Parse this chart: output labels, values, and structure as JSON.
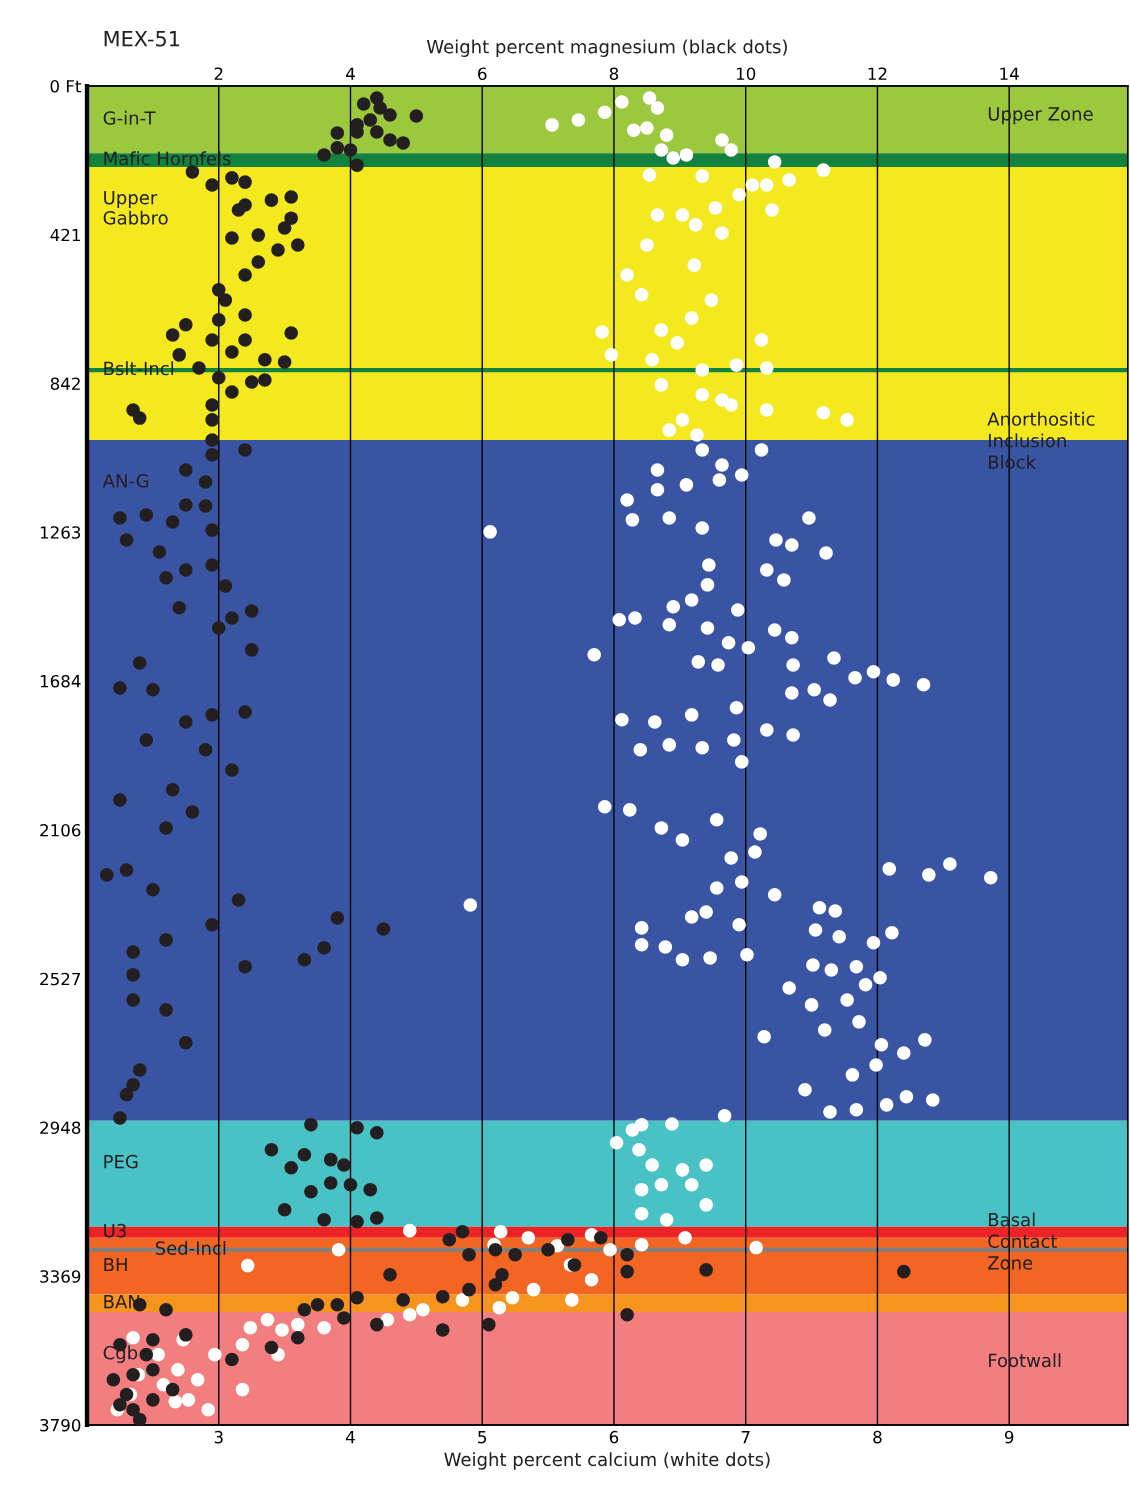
{
  "chart_data": {
    "type": "scatter",
    "title": "MEX-51",
    "xlabel": "Weight percent calcium (white dots)",
    "x2label": "Weight percent magnesium (black dots)",
    "xlim": [
      2.0,
      9.9
    ],
    "xticks": [
      3,
      4,
      5,
      6,
      7,
      8,
      9
    ],
    "x2lim": [
      0,
      15.8
    ],
    "x2ticks": [
      2,
      4,
      6,
      8,
      10,
      12,
      14
    ],
    "ylim": [
      3790,
      0
    ],
    "yticks": [
      {
        "value": 0,
        "label": "0 Ft"
      },
      421,
      842,
      1263,
      1684,
      2106,
      2527,
      2948,
      3369,
      3790
    ],
    "grid": "x",
    "marker": "circle",
    "bands": [
      {
        "axis": "y",
        "from": 0,
        "to": 190,
        "label": "G-in-T",
        "color": "#9bc83c"
      },
      {
        "axis": "y",
        "from": 190,
        "to": 229,
        "label": "Mafic Hornfels",
        "color": "#13823f"
      },
      {
        "axis": "y",
        "from": 229,
        "to": 1002,
        "label": "Upper\nGabbro",
        "color": "#f3e91e"
      },
      {
        "axis": "y",
        "from": 1002,
        "to": 2929,
        "label": "AN-G",
        "color": "#3a54a4"
      },
      {
        "axis": "y",
        "from": 2929,
        "to": 3229,
        "label": "PEG",
        "color": "#48c2c5"
      },
      {
        "axis": "y",
        "from": 3229,
        "to": 3260,
        "label": "U3",
        "color": "#ed2224"
      },
      {
        "axis": "y",
        "from": 3260,
        "to": 3421,
        "label": "BH",
        "color": "#f26522"
      },
      {
        "axis": "y",
        "from": 3421,
        "to": 3470,
        "label": "BAN",
        "color": "#f7941d"
      },
      {
        "axis": "y",
        "from": 3470,
        "to": 3790,
        "label": "Cgb",
        "color": "#f37e7f"
      }
    ],
    "ref_lines": [
      {
        "axis": "y",
        "value": 804,
        "label": "Bslt-Incl",
        "color": "#13823f"
      },
      {
        "axis": "y",
        "value": 3294,
        "label": "Sed-Incl",
        "color": "#808080"
      }
    ],
    "annotations": [
      "Upper Zone",
      "Anorthositic\nInclusion\nBlock",
      "Basal\nContact\nZone",
      "Footwall"
    ],
    "series": [
      {
        "color": "#ffffff",
        "x": [
          5.53,
          5.73,
          5.93,
          6.06,
          6.27,
          6.33,
          6.15,
          6.25,
          6.4,
          6.36,
          6.55,
          6.45,
          6.82,
          6.89,
          7.22,
          7.59,
          6.27,
          6.67,
          7.05,
          7.16,
          7.33,
          6.95,
          7.2,
          6.52,
          6.77,
          6.62,
          6.82,
          6.33,
          6.25,
          6.61,
          6.1,
          6.74,
          6.21,
          6.59,
          5.91,
          6.36,
          7.12,
          6.48,
          6.29,
          5.98,
          6.67,
          6.93,
          7.16,
          6.36,
          6.67,
          6.82,
          7.16,
          6.52,
          7.59,
          7.77,
          6.42,
          6.63,
          6.89,
          6.67,
          6.82,
          7.12,
          6.97,
          6.33,
          6.55,
          6.8,
          6.1,
          6.33,
          6.14,
          6.42,
          6.67,
          5.06,
          7.48,
          7.23,
          7.35,
          7.61,
          7.16,
          7.29,
          6.72,
          6.71,
          6.45,
          6.59,
          6.94,
          6.04,
          6.16,
          6.42,
          6.71,
          7.22,
          7.35,
          7.02,
          6.87,
          5.85,
          6.64,
          6.79,
          7.67,
          7.36,
          7.52,
          7.83,
          7.97,
          8.12,
          8.35,
          7.64,
          7.35,
          6.06,
          6.31,
          6.59,
          6.93,
          7.16,
          7.36,
          6.2,
          6.42,
          6.67,
          6.91,
          6.97,
          5.93,
          6.12,
          6.36,
          6.52,
          6.78,
          7.11,
          6.89,
          7.07,
          6.78,
          6.97,
          8.09,
          8.55,
          8.39,
          8.86,
          4.91,
          6.59,
          6.7,
          6.95,
          6.21,
          6.21,
          6.39,
          6.52,
          6.73,
          7.01,
          7.56,
          7.68,
          7.22,
          7.53,
          7.71,
          7.97,
          8.11,
          7.51,
          7.65,
          7.84,
          7.91,
          7.33,
          7.5,
          7.77,
          8.02,
          7.6,
          7.86,
          8.03,
          8.2,
          8.36,
          7.99,
          7.81,
          7.45,
          7.64,
          7.84,
          8.07,
          8.22,
          8.42,
          7.14,
          6.14,
          6.21,
          6.44,
          6.84,
          6.02,
          6.19,
          6.29,
          6.52,
          6.7,
          6.21,
          6.36,
          6.59,
          6.7,
          6.21,
          6.4,
          4.45,
          5.14,
          5.35,
          5.83,
          5.97,
          6.21,
          6.54,
          7.08,
          3.91,
          3.22,
          5.09,
          5.57,
          5.67,
          5.83,
          5.39,
          5.23,
          4.85,
          5.13,
          5.68,
          4.55,
          4.45,
          4.28,
          3.8,
          3.6,
          3.45,
          3.37,
          3.24,
          3.18,
          2.97,
          2.73,
          2.69,
          2.58,
          2.39,
          2.33,
          2.92,
          2.77,
          3.18,
          2.67,
          3.48,
          2.35,
          2.54,
          2.23,
          2.84
        ],
        "values": [
          110,
          96,
          74,
          45,
          34,
          62,
          125,
          119,
          139,
          181,
          195,
          204,
          153,
          181,
          215,
          238,
          252,
          255,
          280,
          280,
          266,
          308,
          351,
          365,
          345,
          393,
          416,
          365,
          450,
          507,
          535,
          606,
          591,
          657,
          696,
          691,
          719,
          727,
          775,
          761,
          804,
          790,
          798,
          846,
          874,
          889,
          917,
          945,
          925,
          945,
          974,
          988,
          903,
          1030,
          1073,
          1030,
          1101,
          1087,
          1129,
          1115,
          1172,
          1143,
          1228,
          1223,
          1251,
          1262,
          1223,
          1285,
          1299,
          1322,
          1370,
          1398,
          1356,
          1412,
          1474,
          1455,
          1483,
          1511,
          1506,
          1525,
          1534,
          1540,
          1562,
          1590,
          1576,
          1610,
          1630,
          1639,
          1619,
          1639,
          1709,
          1675,
          1658,
          1681,
          1695,
          1738,
          1718,
          1794,
          1800,
          1780,
          1760,
          1823,
          1837,
          1879,
          1865,
          1873,
          1851,
          1913,
          2040,
          2049,
          2100,
          2134,
          2077,
          2117,
          2185,
          2168,
          2270,
          2253,
          2216,
          2202,
          2233,
          2241,
          2318,
          2352,
          2338,
          2374,
          2383,
          2431,
          2437,
          2473,
          2468,
          2459,
          2326,
          2335,
          2289,
          2389,
          2408,
          2425,
          2397,
          2488,
          2502,
          2493,
          2544,
          2553,
          2601,
          2587,
          2524,
          2672,
          2649,
          2714,
          2737,
          2700,
          2771,
          2799,
          2841,
          2904,
          2898,
          2884,
          2861,
          2870,
          2691,
          2955,
          2940,
          2938,
          2915,
          2991,
          3011,
          3054,
          3068,
          3054,
          3124,
          3110,
          3110,
          3167,
          3192,
          3209,
          3240,
          3243,
          3260,
          3252,
          3294,
          3280,
          3260,
          3288,
          3294,
          3339,
          3280,
          3283,
          3337,
          3379,
          3407,
          3430,
          3436,
          3458,
          3436,
          3464,
          3478,
          3492,
          3515,
          3506,
          3591,
          3492,
          3515,
          3563,
          3591,
          3549,
          3634,
          3676,
          3648,
          3704,
          3747,
          3719,
          3690,
          3724,
          3521,
          3543,
          3591,
          3747,
          3662
        ]
      },
      {
        "color": "#231f20",
        "axis": "x2",
        "x": [
          4.4,
          4.2,
          4.45,
          4.1,
          4.3,
          4.6,
          5.0,
          3.8,
          4.1,
          4.4,
          4.8,
          3.6,
          4.0,
          4.1,
          4.6,
          3.8,
          1.6,
          1.9,
          2.2,
          2.4,
          2.4,
          2.3,
          2.8,
          3.1,
          3.1,
          3.0,
          3.2,
          2.6,
          2.2,
          2.9,
          2.4,
          2.6,
          2.0,
          2.1,
          2.0,
          2.4,
          3.1,
          2.4,
          1.5,
          1.3,
          1.9,
          2.2,
          1.4,
          2.7,
          3.0,
          1.7,
          2.0,
          2.2,
          2.5,
          2.7,
          0.7,
          0.8,
          1.9,
          1.9,
          1.9,
          1.5,
          1.8,
          1.9,
          2.4,
          1.8,
          0.5,
          1.3,
          0.9,
          1.5,
          1.9,
          0.6,
          1.1,
          1.5,
          1.2,
          1.9,
          2.1,
          2.5,
          2.2,
          2.0,
          1.4,
          2.5,
          0.8,
          1.0,
          0.5,
          2.4,
          1.5,
          1.9,
          1.8,
          2.2,
          0.9,
          0.5,
          1.3,
          1.6,
          1.2,
          0.3,
          0.6,
          1.0,
          1.9,
          0.7,
          1.2,
          2.3,
          3.3,
          3.8,
          4.5,
          2.4,
          3.6,
          0.7,
          0.7,
          1.2,
          1.5,
          0.8,
          0.6,
          0.5,
          0.7,
          3.4,
          4.1,
          4.4,
          2.8,
          3.1,
          3.3,
          3.7,
          4.0,
          4.3,
          3.0,
          3.6,
          4.1,
          4.4,
          3.4,
          3.9,
          3.7,
          5.5,
          5.7,
          5.8,
          6.2,
          6.3,
          6.5,
          7.0,
          7.3,
          7.4,
          7.8,
          8.2,
          8.2,
          8.2,
          9.4,
          12.4,
          5.8,
          6.2,
          4.6,
          5.4,
          4.8,
          4.1,
          3.5,
          3.3,
          3.8,
          4.4,
          3.9,
          6.1,
          5.4,
          3.2,
          2.8,
          2.2,
          0.8,
          1.2,
          1.0,
          0.5,
          0.7,
          0.4,
          1.0,
          1.0,
          0.7,
          0.5,
          0.8,
          1.5,
          1.3,
          0.9,
          0.6
        ],
        "values": [
          34,
          51,
          62,
          110,
          96,
          82,
          85,
          133,
          130,
          130,
          161,
          195,
          181,
          224,
          153,
          175,
          243,
          280,
          260,
          272,
          337,
          351,
          323,
          314,
          374,
          402,
          450,
          422,
          430,
          464,
          535,
          498,
          577,
          606,
          662,
          648,
          699,
          719,
          676,
          705,
          719,
          753,
          761,
          775,
          781,
          798,
          826,
          866,
          838,
          832,
          917,
          940,
          903,
          945,
          1002,
          1087,
          1121,
          1044,
          1030,
          1189,
          1223,
          1234,
          1214,
          1186,
          1257,
          1285,
          1319,
          1370,
          1392,
          1356,
          1415,
          1486,
          1506,
          1534,
          1477,
          1596,
          1633,
          1709,
          1704,
          1772,
          1800,
          1780,
          1879,
          1936,
          1851,
          2021,
          1992,
          2055,
          2100,
          2233,
          2219,
          2275,
          2374,
          2451,
          2417,
          2304,
          2473,
          2355,
          2386,
          2493,
          2439,
          2516,
          2587,
          2615,
          2708,
          2785,
          2855,
          2921,
          2827,
          2940,
          2949,
          2963,
          3011,
          3062,
          3025,
          3105,
          3110,
          3124,
          3181,
          3209,
          3215,
          3204,
          3130,
          3054,
          3039,
          3266,
          3243,
          3308,
          3294,
          3365,
          3308,
          3294,
          3266,
          3337,
          3260,
          3308,
          3356,
          3478,
          3351,
          3356,
          3407,
          3393,
          3365,
          3427,
          3436,
          3430,
          3450,
          3464,
          3450,
          3506,
          3487,
          3506,
          3521,
          3543,
          3571,
          3605,
          3450,
          3464,
          3549,
          3563,
          3648,
          3662,
          3634,
          3719,
          3747,
          3733,
          3775,
          3535,
          3690,
          3591,
          3704
        ]
      }
    ]
  }
}
